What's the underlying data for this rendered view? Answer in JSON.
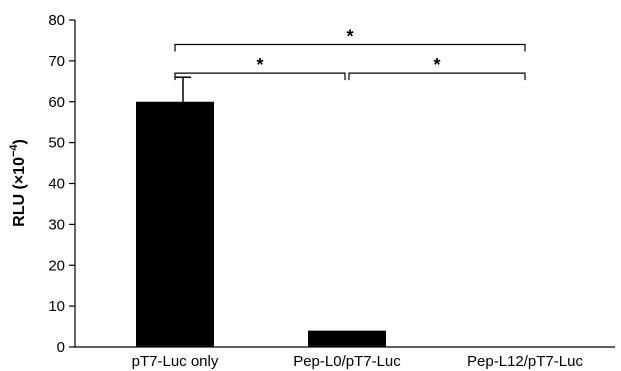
{
  "chart_data": {
    "type": "bar",
    "categories": [
      "pT7-Luc only",
      "Pep-L0/pT7-Luc",
      "Pep-L12/pT7-Luc"
    ],
    "values": [
      60,
      4,
      0
    ],
    "error_up": [
      6,
      0,
      0
    ],
    "ylabel_main": "RLU (×10",
    "ylabel_exp": "−4",
    "ylabel_close": ")",
    "ylim": [
      0,
      80
    ],
    "yticks": [
      "0",
      "10",
      "20",
      "30",
      "40",
      "50",
      "60",
      "70",
      "80"
    ],
    "bar_color": "#000000",
    "significance": [
      {
        "from": 0,
        "to": 2,
        "level": 74,
        "label": "*"
      },
      {
        "from": 0,
        "to": 1,
        "level": 67,
        "label": "*"
      },
      {
        "from": 1,
        "to": 2,
        "level": 67,
        "label": "*"
      }
    ]
  }
}
